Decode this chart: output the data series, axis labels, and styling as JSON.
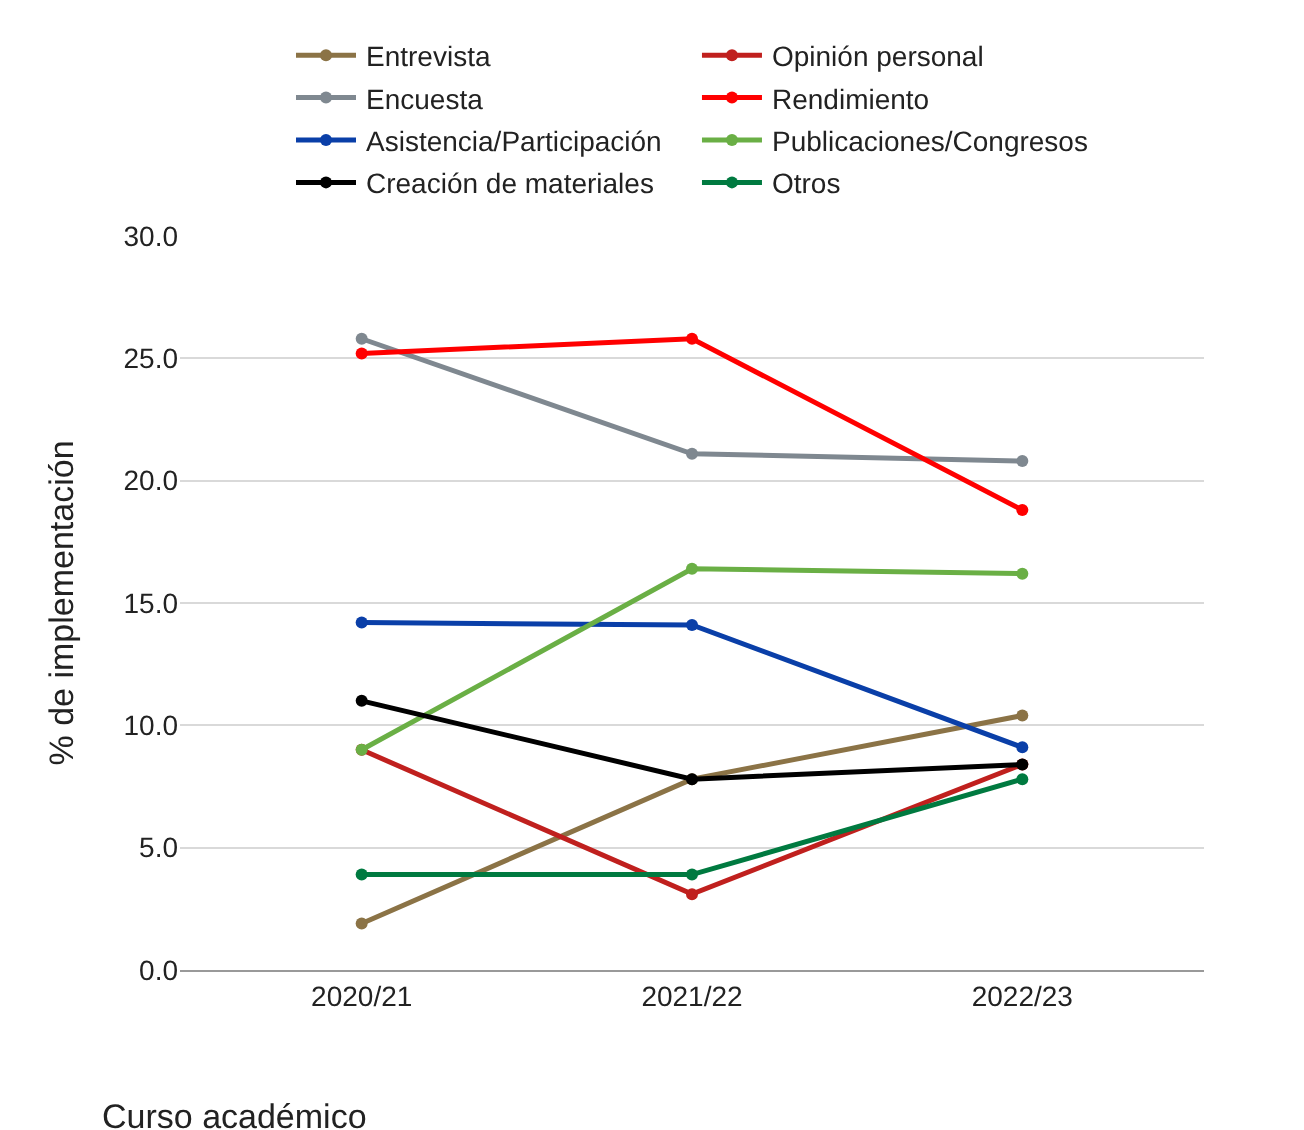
{
  "chart_data": {
    "type": "line",
    "xlabel": "Curso académico",
    "ylabel": "% de implementación",
    "categories": [
      "2020/21",
      "2021/22",
      "2022/23"
    ],
    "series": [
      {
        "name": "Entrevista",
        "color": "#8b7346",
        "values": [
          1.9,
          7.8,
          10.4
        ]
      },
      {
        "name": "Opinión personal",
        "color": "#c0201e",
        "values": [
          9.0,
          3.1,
          8.4
        ]
      },
      {
        "name": "Encuesta",
        "color": "#7f8890",
        "values": [
          25.8,
          21.1,
          20.8
        ]
      },
      {
        "name": "Rendimiento",
        "color": "#ff0000",
        "values": [
          25.2,
          25.8,
          18.8
        ]
      },
      {
        "name": "Asistencia/Participación",
        "color": "#0a3fa8",
        "values": [
          14.2,
          14.1,
          9.1
        ]
      },
      {
        "name": "Publicaciones/Congresos",
        "color": "#6aaf45",
        "values": [
          9.0,
          16.4,
          16.2
        ]
      },
      {
        "name": "Creación de materiales",
        "color": "#000000",
        "values": [
          11.0,
          7.8,
          8.4
        ]
      },
      {
        "name": "Otros",
        "color": "#007a40",
        "values": [
          3.9,
          3.9,
          7.8
        ]
      }
    ],
    "ylim": [
      0,
      30
    ],
    "yticks": [
      {
        "value": 0,
        "label": "0.0"
      },
      {
        "value": 5,
        "label": "5.0"
      },
      {
        "value": 10,
        "label": "10.0"
      },
      {
        "value": 15,
        "label": "15.0"
      },
      {
        "value": 20,
        "label": "20.0"
      },
      {
        "value": 25,
        "label": "25.0"
      },
      {
        "value": 30,
        "label": "30.0"
      }
    ],
    "grid": "y",
    "legend": "top",
    "marker": "circle",
    "line_style": "solid"
  }
}
